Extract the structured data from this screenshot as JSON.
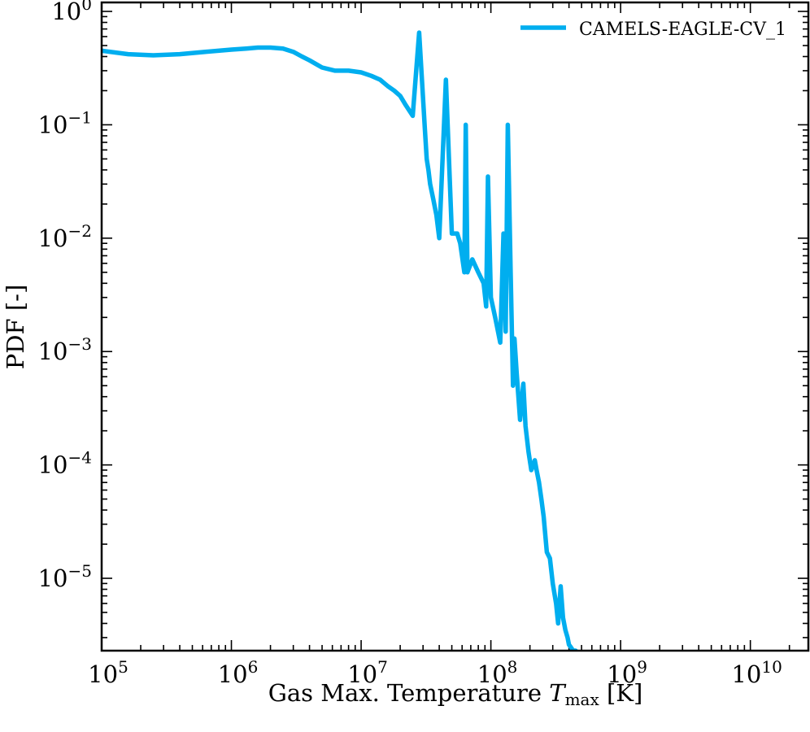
{
  "chart_data": {
    "type": "line",
    "title": "",
    "xlabel": {
      "prefix": "Gas Max. Temperature ",
      "var": "T",
      "sub": "max",
      "suffix": " [K]"
    },
    "ylabel": "PDF [-]",
    "xscale": "log",
    "yscale": "log",
    "xlim": [
      100000,
      28000000000
    ],
    "ylim": [
      2.3e-06,
      1.2
    ],
    "xtick_labels": [
      {
        "value": 100000,
        "base": "10",
        "exp": "5"
      },
      {
        "value": 1000000,
        "base": "10",
        "exp": "6"
      },
      {
        "value": 10000000,
        "base": "10",
        "exp": "7"
      },
      {
        "value": 100000000,
        "base": "10",
        "exp": "8"
      },
      {
        "value": 1000000000,
        "base": "10",
        "exp": "9"
      },
      {
        "value": 10000000000,
        "base": "10",
        "exp": "10"
      }
    ],
    "ytick_labels": [
      {
        "value": 1,
        "base": "10",
        "exp": "0"
      },
      {
        "value": 0.1,
        "base": "10",
        "exp": "−1"
      },
      {
        "value": 0.01,
        "base": "10",
        "exp": "−2"
      },
      {
        "value": 0.001,
        "base": "10",
        "exp": "−3"
      },
      {
        "value": 0.0001,
        "base": "10",
        "exp": "−4"
      },
      {
        "value": 1e-05,
        "base": "10",
        "exp": "−5"
      }
    ],
    "grid": false,
    "legend_position": "top-right",
    "series": [
      {
        "name": "CAMELS-EAGLE-CV_1",
        "color": "#00aeef",
        "x": [
          100000,
          160000,
          250000,
          400000,
          630000,
          1000000,
          1300000,
          1600000,
          2000000,
          2500000,
          3000000,
          3500000,
          4000000,
          5000000,
          6300000,
          8000000,
          10000000,
          12000000,
          14000000,
          16000000,
          18000000,
          20000000,
          22000000,
          25000000,
          28000000,
          31000000,
          32000000,
          33000000,
          34000000,
          36000000,
          38000000,
          40000000,
          45000000,
          50000000,
          55000000,
          58000000,
          61000000,
          62500000,
          64000000,
          66000000,
          72000000,
          80000000,
          88000000,
          92000000,
          95000000,
          100000000,
          108000000,
          118000000,
          125000000,
          130000000,
          135000000,
          142000000,
          148000000,
          152000000,
          158000000,
          168000000,
          178000000,
          185000000,
          195000000,
          205000000,
          212000000,
          218000000,
          225000000,
          235000000,
          245000000,
          255000000,
          270000000,
          285000000,
          300000000,
          318000000,
          330000000,
          345000000,
          360000000,
          375000000,
          390000000,
          400000000,
          410000000,
          420000000,
          430000000,
          440000000,
          445000000,
          450000000
        ],
        "y": [
          0.45,
          0.42,
          0.41,
          0.42,
          0.44,
          0.46,
          0.47,
          0.48,
          0.48,
          0.47,
          0.44,
          0.4,
          0.37,
          0.32,
          0.3,
          0.3,
          0.29,
          0.27,
          0.25,
          0.22,
          0.2,
          0.18,
          0.15,
          0.12,
          0.65,
          0.09,
          0.05,
          0.04,
          0.03,
          0.022,
          0.016,
          0.01,
          0.25,
          0.011,
          0.011,
          0.009,
          0.006,
          0.005,
          0.1,
          0.005,
          0.0065,
          0.005,
          0.004,
          0.0025,
          0.035,
          0.003,
          0.002,
          0.0012,
          0.011,
          0.0015,
          0.1,
          0.005,
          0.0005,
          0.0013,
          0.00065,
          0.00025,
          0.00052,
          0.00022,
          0.00013,
          9e-05,
          0.0001,
          0.00011,
          9e-05,
          7e-05,
          5e-05,
          3.5e-05,
          1.7e-05,
          1.5e-05,
          9e-06,
          6e-06,
          4e-06,
          8.5e-06,
          4.5e-06,
          3.5e-06,
          3e-06,
          2.6e-06,
          2.5e-06,
          2.4e-06,
          2.3e-06,
          2.3e-06,
          2.3e-06,
          2.3e-06
        ]
      }
    ]
  }
}
